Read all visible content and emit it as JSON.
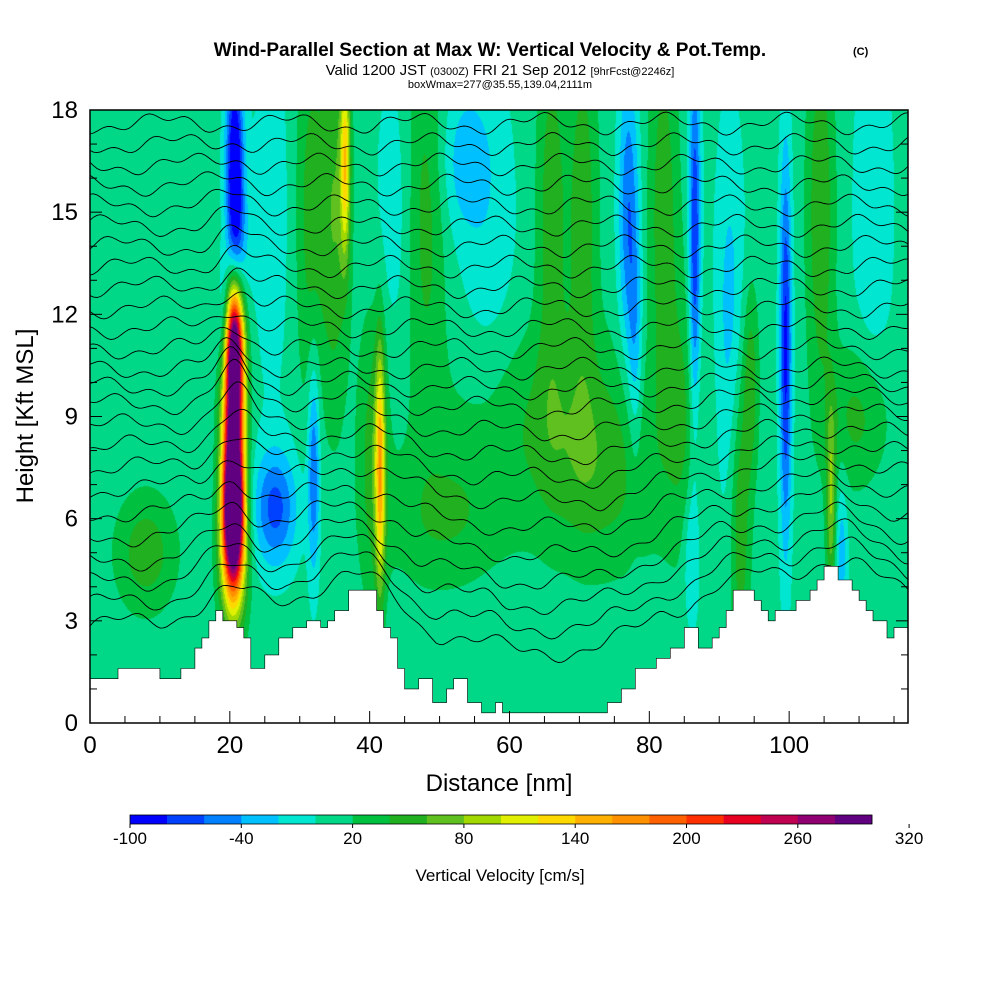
{
  "title": {
    "main": "Wind-Parallel Section at Max W: Vertical Velocity & Pot.Temp.",
    "copyright": "(C)",
    "valid_prefix": "Valid 1200 JST",
    "valid_utc": "(0300Z)",
    "valid_date": "FRI 21 Sep 2012",
    "forecast": "[9hrFcst@2246z]",
    "box": "boxWmax=277@35.55,139.04,2111m"
  },
  "colors": {
    "background_field": "#00e6d0",
    "terrain": "#ffffff",
    "contour": "#000000"
  },
  "chart_data": {
    "type": "heatmap",
    "title": "Wind-Parallel Section at Max W: Vertical Velocity & Pot.Temp.",
    "xlabel": "Distance [nm]",
    "ylabel": "Height [Kft MSL]",
    "xlim": [
      0,
      117
    ],
    "ylim": [
      0,
      18
    ],
    "x_ticks": [
      0,
      20,
      40,
      60,
      80,
      100
    ],
    "y_ticks": [
      0,
      3,
      6,
      9,
      12,
      15,
      18
    ],
    "grid": false,
    "colorbar": {
      "label": "Vertical Velocity [cm/s]",
      "min": -100,
      "step": 20,
      "tick_labels": [
        "-100",
        "-40",
        "20",
        "80",
        "140",
        "200",
        "260",
        "320"
      ],
      "colors": [
        "#0000ff",
        "#0040ff",
        "#0080ff",
        "#00c0ff",
        "#00e6d0",
        "#00d888",
        "#00c040",
        "#20b020",
        "#60c020",
        "#a0d800",
        "#e0f000",
        "#ffd800",
        "#ffb000",
        "#ff9000",
        "#ff6000",
        "#ff3000",
        "#e80020",
        "#c00050",
        "#900070",
        "#600080"
      ]
    },
    "terrain": [
      [
        0,
        1.3
      ],
      [
        4,
        1.3
      ],
      [
        4,
        1.6
      ],
      [
        10,
        1.6
      ],
      [
        10,
        1.3
      ],
      [
        13,
        1.3
      ],
      [
        13,
        1.6
      ],
      [
        15,
        1.6
      ],
      [
        15,
        2.2
      ],
      [
        16,
        2.2
      ],
      [
        16,
        2.5
      ],
      [
        17,
        2.5
      ],
      [
        17,
        3
      ],
      [
        18,
        3
      ],
      [
        18,
        3.3
      ],
      [
        19,
        3.3
      ],
      [
        19,
        3
      ],
      [
        20,
        3
      ],
      [
        21,
        3
      ],
      [
        21,
        2.8
      ],
      [
        22,
        2.8
      ],
      [
        22,
        2.5
      ],
      [
        23,
        2.5
      ],
      [
        23,
        1.6
      ],
      [
        25,
        1.6
      ],
      [
        25,
        2
      ],
      [
        27,
        2
      ],
      [
        27,
        2.5
      ],
      [
        29,
        2.5
      ],
      [
        29,
        2.8
      ],
      [
        31,
        2.8
      ],
      [
        31,
        3
      ],
      [
        33,
        3
      ],
      [
        33,
        2.8
      ],
      [
        34,
        2.8
      ],
      [
        34,
        3
      ],
      [
        35,
        3
      ],
      [
        35,
        3.3
      ],
      [
        37,
        3.3
      ],
      [
        37,
        3.9
      ],
      [
        40,
        3.9
      ],
      [
        41,
        3.9
      ],
      [
        41,
        3.3
      ],
      [
        42,
        3.3
      ],
      [
        42,
        2.8
      ],
      [
        43,
        2.8
      ],
      [
        43,
        2.5
      ],
      [
        44,
        2.5
      ],
      [
        44,
        1.6
      ],
      [
        45,
        1.6
      ],
      [
        45,
        1
      ],
      [
        47,
        1
      ],
      [
        47,
        1.3
      ],
      [
        49,
        1.3
      ],
      [
        49,
        0.6
      ],
      [
        51,
        0.6
      ],
      [
        51,
        1
      ],
      [
        52,
        1
      ],
      [
        52,
        1.3
      ],
      [
        54,
        1.3
      ],
      [
        54,
        0.6
      ],
      [
        56,
        0.6
      ],
      [
        56,
        0.3
      ],
      [
        58,
        0.3
      ],
      [
        58,
        0.6
      ],
      [
        59,
        0.6
      ],
      [
        59,
        0.3
      ],
      [
        74,
        0.3
      ],
      [
        74,
        0.6
      ],
      [
        76,
        0.6
      ],
      [
        76,
        1
      ],
      [
        78,
        1
      ],
      [
        78,
        1.6
      ],
      [
        81,
        1.6
      ],
      [
        81,
        1.9
      ],
      [
        83,
        1.9
      ],
      [
        83,
        2.2
      ],
      [
        85,
        2.2
      ],
      [
        85,
        2.8
      ],
      [
        87,
        2.8
      ],
      [
        87,
        2.2
      ],
      [
        89,
        2.2
      ],
      [
        89,
        2.5
      ],
      [
        90,
        2.5
      ],
      [
        90,
        2.8
      ],
      [
        91,
        2.8
      ],
      [
        91,
        3.3
      ],
      [
        92,
        3.3
      ],
      [
        92,
        3.9
      ],
      [
        95,
        3.9
      ],
      [
        95,
        3.6
      ],
      [
        96,
        3.6
      ],
      [
        96,
        3.3
      ],
      [
        97,
        3.3
      ],
      [
        97,
        3
      ],
      [
        98,
        3
      ],
      [
        98,
        3.3
      ],
      [
        101,
        3.3
      ],
      [
        101,
        3.6
      ],
      [
        103,
        3.6
      ],
      [
        103,
        3.9
      ],
      [
        104,
        3.9
      ],
      [
        104,
        4.2
      ],
      [
        105,
        4.2
      ],
      [
        105,
        4.6
      ],
      [
        107,
        4.6
      ],
      [
        107,
        4.2
      ],
      [
        109,
        4.2
      ],
      [
        109,
        3.9
      ],
      [
        110,
        3.9
      ],
      [
        110,
        3.6
      ],
      [
        111,
        3.6
      ],
      [
        111,
        3.3
      ],
      [
        112,
        3.3
      ],
      [
        112,
        3
      ],
      [
        114,
        3
      ],
      [
        114,
        2.5
      ],
      [
        115,
        2.5
      ],
      [
        115,
        2.8
      ],
      [
        117,
        2.8
      ]
    ],
    "features": [
      {
        "x": 20.5,
        "y": 9.5,
        "sx": 1.1,
        "sy": 2.7,
        "v": 300
      },
      {
        "x": 20.5,
        "y": 6.3,
        "sx": 1.0,
        "sy": 1.3,
        "v": 240
      },
      {
        "x": 20.5,
        "y": 5,
        "sx": 1.3,
        "sy": 1.5,
        "v": 130
      },
      {
        "x": 20.5,
        "y": 11.2,
        "sx": 0.9,
        "sy": 1.3,
        "v": 170
      },
      {
        "x": 19.5,
        "y": 11.5,
        "sx": 0.8,
        "sy": 1.4,
        "v": -110
      },
      {
        "x": 20.7,
        "y": 16,
        "sx": 0.9,
        "sy": 2.5,
        "v": -130
      },
      {
        "x": 21,
        "y": 13.5,
        "sx": 1.2,
        "sy": 1.5,
        "v": -60
      },
      {
        "x": 26.5,
        "y": 6.3,
        "sx": 2.2,
        "sy": 1.2,
        "v": -75
      },
      {
        "x": 32,
        "y": 7.5,
        "sx": 0.6,
        "sy": 2.2,
        "v": -70
      },
      {
        "x": 41.5,
        "y": 7.5,
        "sx": 0.5,
        "sy": 2.5,
        "v": 120
      },
      {
        "x": 40.5,
        "y": 8,
        "sx": 1.5,
        "sy": 3,
        "v": 40
      },
      {
        "x": 35,
        "y": 15,
        "sx": 1.4,
        "sy": 4,
        "v": 50
      },
      {
        "x": 36.5,
        "y": 16.5,
        "sx": 0.5,
        "sy": 2,
        "v": 110
      },
      {
        "x": 31.5,
        "y": 15,
        "sx": 1.5,
        "sy": 4,
        "v": 40
      },
      {
        "x": 26,
        "y": 15,
        "sx": 2,
        "sy": 4,
        "v": -20
      },
      {
        "x": 43.5,
        "y": 15,
        "sx": 2,
        "sy": 3,
        "v": -20
      },
      {
        "x": 48,
        "y": 15,
        "sx": 2,
        "sy": 4,
        "v": 40
      },
      {
        "x": 53.5,
        "y": 16.5,
        "sx": 2.5,
        "sy": 1.5,
        "v": -35
      },
      {
        "x": 57,
        "y": 14,
        "sx": 3,
        "sy": 4,
        "v": -20
      },
      {
        "x": 66,
        "y": 15,
        "sx": 1.5,
        "sy": 4,
        "v": 45
      },
      {
        "x": 70.5,
        "y": 15,
        "sx": 1.5,
        "sy": 4,
        "v": 45
      },
      {
        "x": 77,
        "y": 15,
        "sx": 1.0,
        "sy": 3,
        "v": -65
      },
      {
        "x": 78,
        "y": 11,
        "sx": 0.7,
        "sy": 2.5,
        "v": -40
      },
      {
        "x": 82,
        "y": 15,
        "sx": 1.5,
        "sy": 4,
        "v": 45
      },
      {
        "x": 86.5,
        "y": 14,
        "sx": 0.6,
        "sy": 4,
        "v": -90
      },
      {
        "x": 86,
        "y": 5,
        "sx": 0.8,
        "sy": 1.5,
        "v": -35
      },
      {
        "x": 91.5,
        "y": 12,
        "sx": 1.5,
        "sy": 4,
        "v": -35
      },
      {
        "x": 93,
        "y": 6,
        "sx": 1,
        "sy": 3,
        "v": 50
      },
      {
        "x": 94.5,
        "y": 10,
        "sx": 0.8,
        "sy": 2,
        "v": 45
      },
      {
        "x": 99.5,
        "y": 11,
        "sx": 0.6,
        "sy": 4,
        "v": -95
      },
      {
        "x": 104.5,
        "y": 15,
        "sx": 1.4,
        "sy": 4,
        "v": 50
      },
      {
        "x": 106,
        "y": 6.5,
        "sx": 0.5,
        "sy": 2,
        "v": 70
      },
      {
        "x": 107.5,
        "y": 5,
        "sx": 0.6,
        "sy": 1.5,
        "v": -40
      },
      {
        "x": 112,
        "y": 15,
        "sx": 2,
        "sy": 4,
        "v": -25
      },
      {
        "x": 8,
        "y": 5,
        "sx": 3,
        "sy": 1.2,
        "v": 45
      },
      {
        "x": 110,
        "y": 9,
        "sx": 3,
        "sy": 1.5,
        "v": 40
      },
      {
        "x": 65,
        "y": 9,
        "sx": 10,
        "sy": 2,
        "v": 30
      },
      {
        "x": 60,
        "y": 2,
        "sx": 8,
        "sy": 1.2,
        "v": -5
      },
      {
        "x": 51,
        "y": 6,
        "sx": 6,
        "sy": 1.5,
        "v": 32
      },
      {
        "x": 73,
        "y": 7,
        "sx": 6,
        "sy": 2,
        "v": 32
      },
      {
        "x": 85,
        "y": 9,
        "sx": 2,
        "sy": 3,
        "v": 30
      }
    ],
    "isentropes": [
      {
        "base": 1.9,
        "label": "",
        "lx": 0
      },
      {
        "base": 2.6,
        "label": "",
        "lx": 0
      },
      {
        "base": 3.3,
        "label": "",
        "lx": 0
      },
      {
        "base": 4.0,
        "label": "",
        "lx": 0
      },
      {
        "base": 4.8,
        "label": "",
        "lx": 0
      },
      {
        "base": 5.6,
        "label": "",
        "lx": 0
      },
      {
        "base": 6.4,
        "label": "",
        "lx": 0
      },
      {
        "base": 7.1,
        "label": "",
        "lx": 0
      },
      {
        "base": 7.8,
        "label": "",
        "lx": 0
      },
      {
        "base": 8.5,
        "label": "",
        "lx": 0
      },
      {
        "base": 9.2,
        "label": "",
        "lx": 0
      },
      {
        "base": 9.8,
        "label": "",
        "lx": 0
      },
      {
        "base": 10.4,
        "label": "",
        "lx": 0
      },
      {
        "base": 11.0,
        "label": "",
        "lx": 0
      },
      {
        "base": 11.6,
        "label": "",
        "lx": 0
      },
      {
        "base": 12.2,
        "label": "",
        "lx": 0
      },
      {
        "base": 12.8,
        "label": "",
        "lx": 0
      },
      {
        "base": 13.4,
        "label": "",
        "lx": 0
      },
      {
        "base": 14.0,
        "label": "",
        "lx": 0
      },
      {
        "base": 14.6,
        "label": "",
        "lx": 0
      },
      {
        "base": 15.2,
        "label": "",
        "lx": 0
      },
      {
        "base": 15.8,
        "label": "",
        "lx": 0
      },
      {
        "base": 16.4,
        "label": "",
        "lx": 0
      },
      {
        "base": 17.0,
        "label": "",
        "lx": 0
      },
      {
        "base": 17.6,
        "label": "",
        "lx": 0
      }
    ]
  }
}
